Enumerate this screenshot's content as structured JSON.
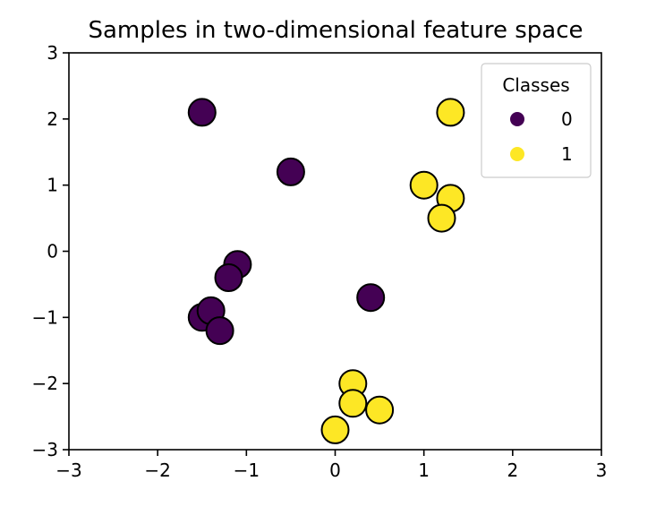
{
  "chart_data": {
    "type": "scatter",
    "title": "Samples in two-dimensional feature space",
    "xlabel": "",
    "ylabel": "",
    "xlim": [
      -3,
      3
    ],
    "ylim": [
      -3,
      3
    ],
    "xticks": [
      -3,
      -2,
      -1,
      0,
      1,
      2,
      3
    ],
    "yticks": [
      -3,
      -2,
      -1,
      0,
      1,
      2,
      3
    ],
    "xtick_labels": [
      "−3",
      "−2",
      "−1",
      "0",
      "1",
      "2",
      "3"
    ],
    "ytick_labels": [
      "−3",
      "−2",
      "−1",
      "0",
      "1",
      "2",
      "3"
    ],
    "grid": false,
    "legend": {
      "title": "Classes",
      "placement": "top-right",
      "entries": [
        "0",
        "1"
      ]
    },
    "class_colors": {
      "0": "#440154",
      "1": "#fde725"
    },
    "marker_edge_color": "#000000",
    "series": [
      {
        "name": "0",
        "class": "0",
        "points": [
          {
            "x": -1.5,
            "y": 2.1
          },
          {
            "x": -0.5,
            "y": 1.2
          },
          {
            "x": -1.1,
            "y": -0.2
          },
          {
            "x": -1.2,
            "y": -0.4
          },
          {
            "x": -1.5,
            "y": -1.0
          },
          {
            "x": -1.4,
            "y": -0.9
          },
          {
            "x": -1.3,
            "y": -1.2
          },
          {
            "x": 0.4,
            "y": -0.7
          }
        ]
      },
      {
        "name": "1",
        "class": "1",
        "points": [
          {
            "x": 1.3,
            "y": 2.1
          },
          {
            "x": 1.0,
            "y": 1.0
          },
          {
            "x": 1.3,
            "y": 0.8
          },
          {
            "x": 1.2,
            "y": 0.5
          },
          {
            "x": 0.2,
            "y": -2.0
          },
          {
            "x": 0.2,
            "y": -2.3
          },
          {
            "x": 0.5,
            "y": -2.4
          },
          {
            "x": 0.0,
            "y": -2.7
          }
        ]
      }
    ]
  }
}
